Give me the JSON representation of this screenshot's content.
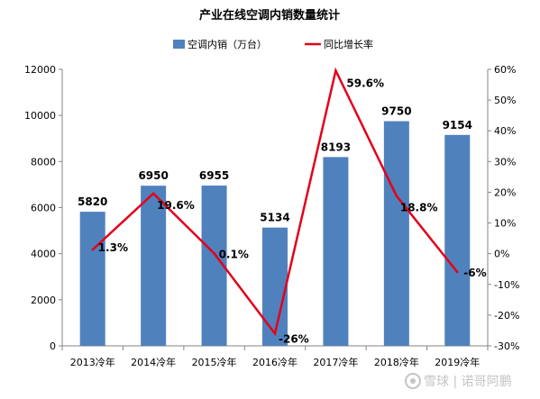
{
  "chart_data": {
    "type": "bar",
    "title": "产业在线空调内销数量统计",
    "categories": [
      "2013冷年",
      "2014冷年",
      "2015冷年",
      "2016冷年",
      "2017冷年",
      "2018冷年",
      "2019冷年"
    ],
    "series": [
      {
        "name": "空调内销（万台）",
        "type": "bar",
        "axis": "left",
        "values": [
          5820,
          6950,
          6955,
          5134,
          8193,
          9750,
          9154
        ],
        "labels": [
          "5820",
          "6950",
          "6955",
          "5134",
          "8193",
          "9750",
          "9154"
        ]
      },
      {
        "name": "同比增长率",
        "type": "line",
        "axis": "right",
        "values": [
          1.3,
          19.6,
          0.1,
          -26,
          59.6,
          18.8,
          -6
        ],
        "labels": [
          "1.3%",
          "19.6%",
          "0.1%",
          "-26%",
          "59.6%",
          "18.8%",
          "-6%"
        ]
      }
    ],
    "y_left": {
      "min": 0,
      "max": 12000,
      "ticks": [
        "0",
        "2000",
        "4000",
        "6000",
        "8000",
        "10000",
        "12000"
      ]
    },
    "y_right": {
      "min": -30,
      "max": 60,
      "ticks": [
        "-30%",
        "-20%",
        "-10%",
        "0%",
        "10%",
        "20%",
        "30%",
        "40%",
        "50%",
        "60%"
      ]
    },
    "legend_position": "top",
    "grid": false,
    "colors": {
      "bar": "#4f81bd",
      "line": "#e3001b",
      "axis": "#868686"
    }
  },
  "watermark": {
    "text": "雪球 | 诺哥阿鹏"
  }
}
